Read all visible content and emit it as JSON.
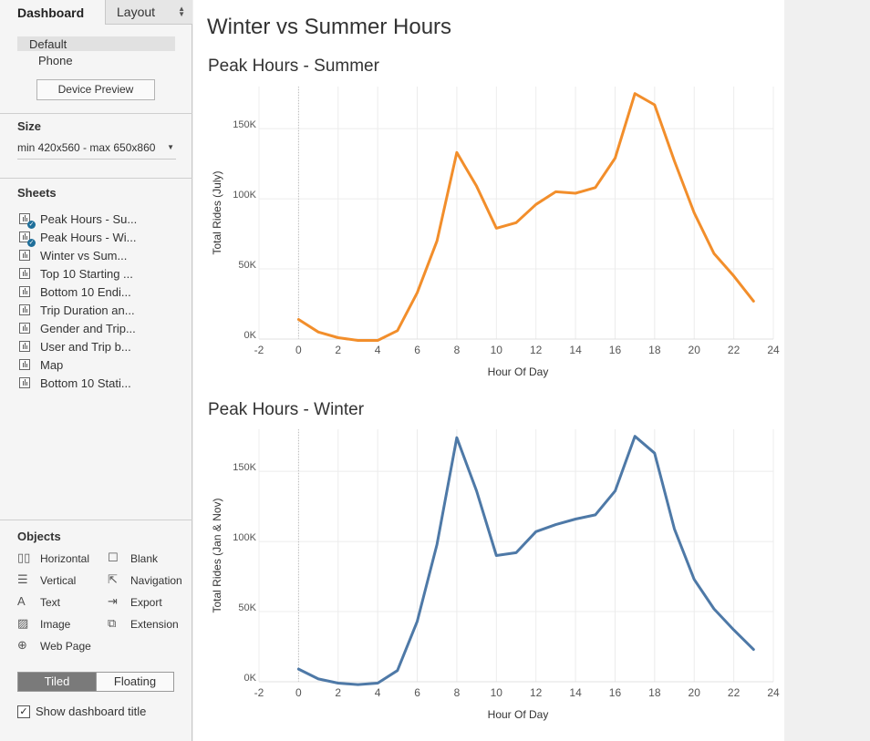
{
  "left_pane": {
    "tabs": {
      "dashboard": "Dashboard",
      "layout": "Layout"
    },
    "device": {
      "default": "Default",
      "phone": "Phone",
      "preview_button": "Device Preview"
    },
    "size": {
      "label": "Size",
      "value": "min 420x560 - max 650x860"
    },
    "sheets": {
      "label": "Sheets",
      "items": [
        {
          "label": "Peak Hours - Su...",
          "used": true
        },
        {
          "label": "Peak Hours - Wi...",
          "used": true
        },
        {
          "label": "Winter vs Sum...",
          "used": false
        },
        {
          "label": "Top 10 Starting ...",
          "used": false
        },
        {
          "label": "Bottom 10 Endi...",
          "used": false
        },
        {
          "label": "Trip Duration an...",
          "used": false
        },
        {
          "label": "Gender and Trip...",
          "used": false
        },
        {
          "label": "User and Trip b...",
          "used": false
        },
        {
          "label": "Map",
          "used": false
        },
        {
          "label": "Bottom 10 Stati...",
          "used": false
        }
      ]
    },
    "objects": {
      "label": "Objects",
      "items": {
        "horizontal": "Horizontal",
        "blank": "Blank",
        "vertical": "Vertical",
        "navigation": "Navigation",
        "text": "Text",
        "export": "Export",
        "image": "Image",
        "extension": "Extension",
        "web_page": "Web Page"
      }
    },
    "layout_mode": {
      "tiled": "Tiled",
      "floating": "Floating",
      "selected": "Tiled"
    },
    "show_title": {
      "label": "Show dashboard title",
      "checked": true
    }
  },
  "dashboard": {
    "title": "Winter vs Summer Hours"
  },
  "colors": {
    "summer": "#f28e2b",
    "winter": "#4e79a7"
  },
  "chart_data": [
    {
      "type": "line",
      "title": "Peak Hours - Summer",
      "xlabel": "Hour Of Day",
      "ylabel": "Total Rides (July)",
      "xlim": [
        -2,
        24
      ],
      "ylim": [
        0,
        180000
      ],
      "xticks": [
        "-2",
        "0",
        "2",
        "4",
        "6",
        "8",
        "10",
        "12",
        "14",
        "16",
        "18",
        "20",
        "22",
        "24"
      ],
      "yticks": [
        "0K",
        "50K",
        "100K",
        "150K"
      ],
      "series": [
        {
          "x": [
            0,
            1,
            2,
            3,
            4,
            5,
            6,
            7,
            8,
            9,
            10,
            11,
            12,
            13,
            14,
            15,
            16,
            17,
            18,
            19,
            20,
            21,
            22,
            23
          ],
          "values": [
            14000,
            5000,
            1000,
            -1000,
            -1000,
            6000,
            33000,
            70000,
            133000,
            109000,
            79000,
            83000,
            96000,
            105000,
            104000,
            108000,
            129000,
            175000,
            167000,
            127000,
            90000,
            61000,
            45000,
            27000
          ]
        }
      ]
    },
    {
      "type": "line",
      "title": "Peak Hours - Winter",
      "xlabel": "Hour Of Day",
      "ylabel": "Total Rides (Jan & Nov)",
      "xlim": [
        -2,
        24
      ],
      "ylim": [
        0,
        180000
      ],
      "xticks": [
        "-2",
        "0",
        "2",
        "4",
        "6",
        "8",
        "10",
        "12",
        "14",
        "16",
        "18",
        "20",
        "22",
        "24"
      ],
      "yticks": [
        "0K",
        "50K",
        "100K",
        "150K"
      ],
      "series": [
        {
          "x": [
            0,
            1,
            2,
            3,
            4,
            5,
            6,
            7,
            8,
            9,
            10,
            11,
            12,
            13,
            14,
            15,
            16,
            17,
            18,
            19,
            20,
            21,
            22,
            23
          ],
          "values": [
            9000,
            2000,
            -1000,
            -2000,
            -1000,
            8000,
            43000,
            98000,
            174000,
            136000,
            90000,
            92000,
            107000,
            112000,
            116000,
            119000,
            136000,
            175000,
            163000,
            109000,
            73000,
            52000,
            37000,
            23000
          ]
        }
      ]
    }
  ]
}
